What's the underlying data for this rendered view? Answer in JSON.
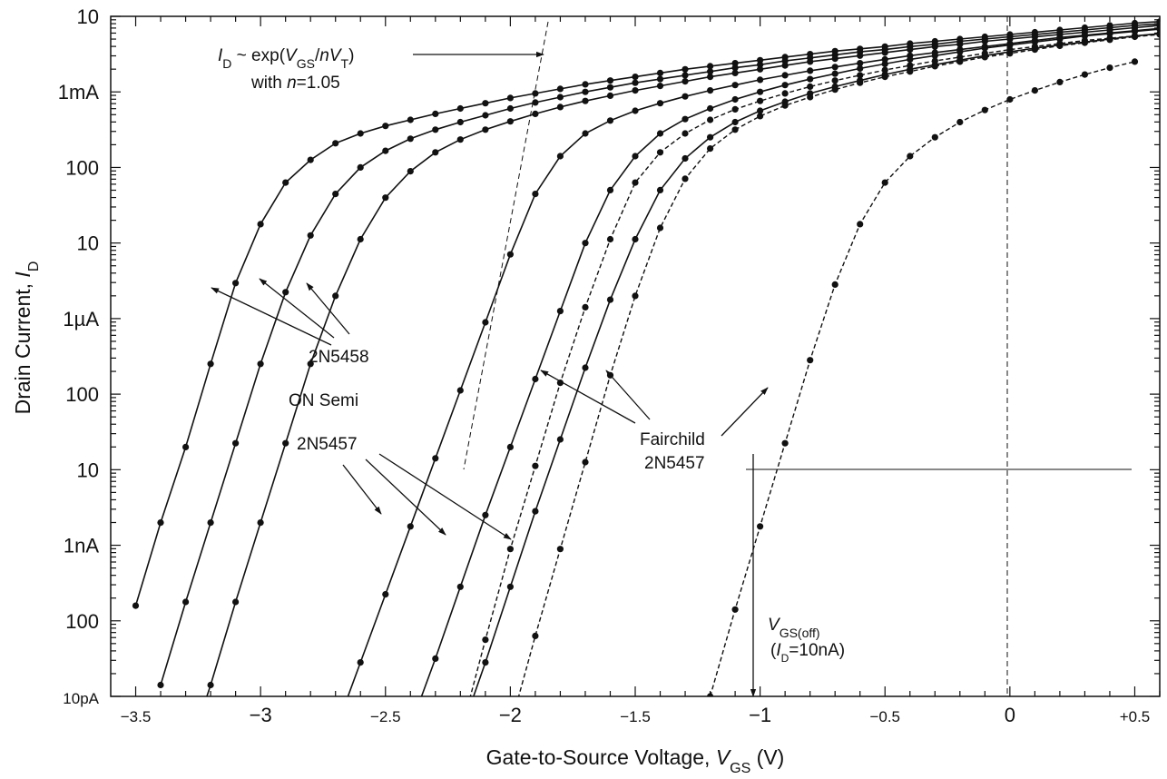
{
  "chart_data": {
    "type": "line",
    "xlabel_prefix": "Gate-to-Source Voltage, ",
    "xlabel_var": "V",
    "xlabel_sub": "GS",
    "xlabel_suffix": " (V)",
    "ylabel_prefix": "Drain Current, ",
    "ylabel_var": "I",
    "ylabel_sub": "D",
    "xlim": [
      -3.6,
      0.6
    ],
    "ylim_log10": [
      -11,
      -2
    ],
    "yscale": "log",
    "grid": false,
    "x_ticks": [
      {
        "v": -3.5,
        "label": "−3.5",
        "small": true
      },
      {
        "v": -3.0,
        "label": "−3",
        "small": false
      },
      {
        "v": -2.5,
        "label": "−2.5",
        "small": true
      },
      {
        "v": -2.0,
        "label": "−2",
        "small": false
      },
      {
        "v": -1.5,
        "label": "−1.5",
        "small": true
      },
      {
        "v": -1.0,
        "label": "−1",
        "small": false
      },
      {
        "v": -0.5,
        "label": "−0.5",
        "small": true
      },
      {
        "v": 0.0,
        "label": "0",
        "small": false
      },
      {
        "v": 0.5,
        "label": "+0.5",
        "small": true
      }
    ],
    "y_ticks": [
      {
        "exp": -2,
        "label": "10",
        "small": false
      },
      {
        "exp": -3,
        "label": "1mA",
        "small": false
      },
      {
        "exp": -4,
        "label": "100",
        "small": false
      },
      {
        "exp": -5,
        "label": "10",
        "small": false
      },
      {
        "exp": -6,
        "label": "1µA",
        "small": false
      },
      {
        "exp": -7,
        "label": "100",
        "small": false
      },
      {
        "exp": -8,
        "label": "10",
        "small": false
      },
      {
        "exp": -9,
        "label": "1nA",
        "small": false
      },
      {
        "exp": -10,
        "label": "100",
        "small": false
      },
      {
        "exp": -11,
        "label": "10pA",
        "small": true
      }
    ],
    "series": [
      {
        "style": "solid",
        "x": [
          -3.5,
          -3.4,
          -3.3,
          -3.2,
          -3.1,
          -3.0,
          -2.9,
          -2.8,
          -2.7,
          -2.6,
          -2.5,
          -2.4,
          -2.3,
          -2.2,
          -2.1,
          -2.0,
          -1.9,
          -1.8,
          -1.7,
          -1.6,
          -1.5,
          -1.4,
          -1.3,
          -1.2,
          -1.1,
          -1.0,
          -0.9,
          -0.8,
          -0.7,
          -0.6,
          -0.5,
          -0.4,
          -0.3,
          -0.2,
          -0.1,
          0.0,
          0.1,
          0.2,
          0.3,
          0.4,
          0.5,
          0.6
        ],
        "logy": [
          -9.8,
          -8.7,
          -7.7,
          -6.6,
          -5.53,
          -4.75,
          -4.2,
          -3.9,
          -3.68,
          -3.55,
          -3.45,
          -3.37,
          -3.29,
          -3.22,
          -3.15,
          -3.08,
          -3.02,
          -2.96,
          -2.9,
          -2.85,
          -2.8,
          -2.75,
          -2.7,
          -2.66,
          -2.62,
          -2.58,
          -2.54,
          -2.5,
          -2.46,
          -2.43,
          -2.4,
          -2.36,
          -2.33,
          -2.3,
          -2.27,
          -2.24,
          -2.21,
          -2.18,
          -2.15,
          -2.12,
          -2.09,
          -2.07
        ]
      },
      {
        "style": "solid",
        "x": [
          -3.4,
          -3.3,
          -3.2,
          -3.1,
          -3.0,
          -2.9,
          -2.8,
          -2.7,
          -2.6,
          -2.5,
          -2.4,
          -2.3,
          -2.2,
          -2.1,
          -2.0,
          -1.9,
          -1.8,
          -1.7,
          -1.6,
          -1.5,
          -1.4,
          -1.3,
          -1.2,
          -1.1,
          -1.0,
          -0.9,
          -0.8,
          -0.7,
          -0.6,
          -0.5,
          -0.4,
          -0.3,
          -0.2,
          -0.1,
          0.0,
          0.1,
          0.2,
          0.3,
          0.4,
          0.5,
          0.6
        ],
        "logy": [
          -10.85,
          -9.75,
          -8.7,
          -7.65,
          -6.6,
          -5.65,
          -4.9,
          -4.35,
          -4.0,
          -3.78,
          -3.62,
          -3.5,
          -3.4,
          -3.31,
          -3.22,
          -3.14,
          -3.07,
          -3.0,
          -2.94,
          -2.88,
          -2.83,
          -2.78,
          -2.73,
          -2.68,
          -2.64,
          -2.59,
          -2.55,
          -2.51,
          -2.47,
          -2.44,
          -2.4,
          -2.37,
          -2.33,
          -2.3,
          -2.27,
          -2.24,
          -2.21,
          -2.18,
          -2.15,
          -2.12,
          -2.1
        ]
      },
      {
        "style": "solid",
        "x": [
          -3.3,
          -3.2,
          -3.1,
          -3.0,
          -2.9,
          -2.8,
          -2.7,
          -2.6,
          -2.5,
          -2.4,
          -2.3,
          -2.2,
          -2.1,
          -2.0,
          -1.9,
          -1.8,
          -1.7,
          -1.6,
          -1.5,
          -1.4,
          -1.3,
          -1.2,
          -1.1,
          -1.0,
          -0.9,
          -0.8,
          -0.7,
          -0.6,
          -0.5,
          -0.4,
          -0.3,
          -0.2,
          -0.1,
          0.0,
          0.1,
          0.2,
          0.3,
          0.4,
          0.5,
          0.6
        ],
        "logy": [
          -11.85,
          -10.85,
          -9.75,
          -8.7,
          -7.65,
          -6.6,
          -5.7,
          -4.95,
          -4.4,
          -4.05,
          -3.8,
          -3.63,
          -3.5,
          -3.39,
          -3.29,
          -3.2,
          -3.12,
          -3.05,
          -2.98,
          -2.92,
          -2.86,
          -2.8,
          -2.75,
          -2.7,
          -2.65,
          -2.6,
          -2.56,
          -2.52,
          -2.48,
          -2.44,
          -2.4,
          -2.37,
          -2.33,
          -2.3,
          -2.27,
          -2.24,
          -2.21,
          -2.18,
          -2.15,
          -2.12
        ]
      },
      {
        "style": "solid",
        "x": [
          -2.7,
          -2.6,
          -2.5,
          -2.4,
          -2.3,
          -2.2,
          -2.1,
          -2.0,
          -1.9,
          -1.8,
          -1.7,
          -1.6,
          -1.5,
          -1.4,
          -1.3,
          -1.2,
          -1.1,
          -1.0,
          -0.9,
          -0.8,
          -0.7,
          -0.6,
          -0.5,
          -0.4,
          -0.3,
          -0.2,
          -0.1,
          0.0,
          0.1,
          0.2,
          0.3,
          0.4,
          0.5,
          0.6
        ],
        "logy": [
          -11.45,
          -10.55,
          -9.65,
          -8.75,
          -7.85,
          -6.95,
          -6.05,
          -5.15,
          -4.35,
          -3.85,
          -3.55,
          -3.38,
          -3.25,
          -3.15,
          -3.06,
          -2.98,
          -2.91,
          -2.84,
          -2.78,
          -2.72,
          -2.67,
          -2.62,
          -2.57,
          -2.52,
          -2.48,
          -2.44,
          -2.4,
          -2.36,
          -2.32,
          -2.28,
          -2.25,
          -2.22,
          -2.19,
          -2.16
        ]
      },
      {
        "style": "solid",
        "x": [
          -2.4,
          -2.3,
          -2.2,
          -2.1,
          -2.0,
          -1.9,
          -1.8,
          -1.7,
          -1.6,
          -1.5,
          -1.4,
          -1.3,
          -1.2,
          -1.1,
          -1.0,
          -0.9,
          -0.8,
          -0.7,
          -0.6,
          -0.5,
          -0.4,
          -0.3,
          -0.2,
          -0.1,
          0.0,
          0.1,
          0.2,
          0.3,
          0.4,
          0.5,
          0.6
        ],
        "logy": [
          -11.4,
          -10.5,
          -9.55,
          -8.6,
          -7.7,
          -6.8,
          -5.9,
          -5.0,
          -4.3,
          -3.85,
          -3.55,
          -3.36,
          -3.22,
          -3.1,
          -3.0,
          -2.91,
          -2.83,
          -2.76,
          -2.69,
          -2.63,
          -2.57,
          -2.52,
          -2.47,
          -2.42,
          -2.38,
          -2.34,
          -2.3,
          -2.26,
          -2.23,
          -2.2,
          -2.17
        ]
      },
      {
        "style": "solid",
        "x": [
          -2.2,
          -2.1,
          -2.0,
          -1.9,
          -1.8,
          -1.7,
          -1.6,
          -1.5,
          -1.4,
          -1.3,
          -1.2,
          -1.1,
          -1.0,
          -0.9,
          -0.8,
          -0.7,
          -0.6,
          -0.5,
          -0.4,
          -0.3,
          -0.2,
          -0.1,
          0.0,
          0.1,
          0.2,
          0.3,
          0.4,
          0.5,
          0.6
        ],
        "logy": [
          -11.5,
          -10.55,
          -9.55,
          -8.55,
          -7.6,
          -6.65,
          -5.75,
          -4.95,
          -4.3,
          -3.88,
          -3.6,
          -3.4,
          -3.25,
          -3.13,
          -3.02,
          -2.93,
          -2.85,
          -2.77,
          -2.7,
          -2.64,
          -2.58,
          -2.52,
          -2.47,
          -2.42,
          -2.38,
          -2.34,
          -2.3,
          -2.26,
          -2.23
        ]
      },
      {
        "style": "dashed",
        "x": [
          -2.2,
          -2.1,
          -2.0,
          -1.9,
          -1.8,
          -1.7,
          -1.6,
          -1.5,
          -1.4,
          -1.3,
          -1.2,
          -1.1,
          -1.0,
          -0.9,
          -0.8,
          -0.7,
          -0.6,
          -0.5,
          -0.4,
          -0.3,
          -0.2,
          -0.1,
          0.0,
          0.1,
          0.2,
          0.3,
          0.4,
          0.5,
          0.6
        ],
        "logy": [
          -11.5,
          -10.25,
          -9.05,
          -7.95,
          -6.85,
          -5.85,
          -4.95,
          -4.2,
          -3.8,
          -3.55,
          -3.37,
          -3.23,
          -3.12,
          -3.02,
          -2.93,
          -2.85,
          -2.78,
          -2.71,
          -2.65,
          -2.59,
          -2.54,
          -2.49,
          -2.44,
          -2.4,
          -2.36,
          -2.32,
          -2.29,
          -2.26,
          -2.23
        ]
      },
      {
        "style": "dashed",
        "x": [
          -2.0,
          -1.9,
          -1.8,
          -1.7,
          -1.6,
          -1.5,
          -1.4,
          -1.3,
          -1.2,
          -1.1,
          -1.0,
          -0.9,
          -0.8,
          -0.7,
          -0.6,
          -0.5,
          -0.4,
          -0.3,
          -0.2,
          -0.1,
          0.0,
          0.1,
          0.2,
          0.3,
          0.4,
          0.5,
          0.6
        ],
        "logy": [
          -11.4,
          -10.2,
          -9.05,
          -7.9,
          -6.75,
          -5.7,
          -4.8,
          -4.15,
          -3.75,
          -3.5,
          -3.32,
          -3.18,
          -3.07,
          -2.97,
          -2.88,
          -2.8,
          -2.73,
          -2.66,
          -2.6,
          -2.54,
          -2.49,
          -2.44,
          -2.39,
          -2.35,
          -2.31,
          -2.27,
          -2.24
        ]
      },
      {
        "style": "dashed",
        "x": [
          -1.2,
          -1.1,
          -1.0,
          -0.9,
          -0.8,
          -0.7,
          -0.6,
          -0.5,
          -0.4,
          -0.3,
          -0.2,
          -0.1,
          0.0,
          0.1,
          0.2,
          0.3,
          0.4,
          0.5
        ],
        "logy": [
          -11.0,
          -9.85,
          -8.75,
          -7.65,
          -6.55,
          -5.55,
          -4.75,
          -4.2,
          -3.85,
          -3.6,
          -3.4,
          -3.24,
          -3.1,
          -2.98,
          -2.87,
          -2.77,
          -2.68,
          -2.6
        ]
      }
    ],
    "annotations": {
      "exp_fit_I": "I",
      "exp_fit_I_sub": "D",
      "exp_fit_tilde": " ~ exp(",
      "exp_fit_V": "V",
      "exp_fit_V_sub": "GS",
      "exp_fit_slash": "/",
      "exp_fit_n": "n",
      "exp_fit_VT": "V",
      "exp_fit_VT_sub": "T",
      "exp_fit_close": ")",
      "exp_fit_with": "with ",
      "exp_fit_n2": "n",
      "exp_fit_nval": "=1.05",
      "label_2n5458": "2N5458",
      "label_on_semi": "ON Semi",
      "label_2n5457": "2N5457",
      "label_fairchild": "Fairchild",
      "label_fairchild_part": "2N5457",
      "vgsoff_V": "V",
      "vgsoff_sub": "GS(off)",
      "vgsoff_cond_open": "(",
      "vgsoff_cond_I": "I",
      "vgsoff_cond_sub": "D",
      "vgsoff_cond_val": "=10nA)"
    }
  }
}
